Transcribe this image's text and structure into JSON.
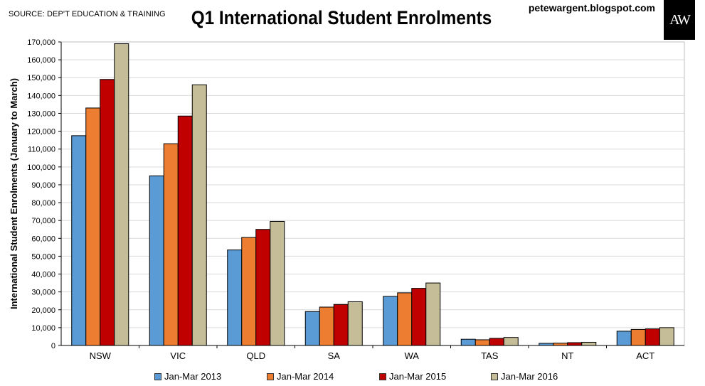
{
  "header": {
    "source": "SOURCE: DEP'T EDUCATION & TRAINING",
    "title": "Q1 International Student Enrolments",
    "site": "petewargent.blogspot.com",
    "logo": "AW"
  },
  "chart_data": {
    "type": "bar",
    "title": "Q1 International Student Enrolments",
    "ylabel": "International Student Enrolments (January to March)",
    "xlabel": "",
    "ylim": [
      0,
      170000
    ],
    "ytick_step": 10000,
    "grid": true,
    "legend_position": "bottom",
    "categories": [
      "NSW",
      "VIC",
      "QLD",
      "SA",
      "WA",
      "TAS",
      "NT",
      "ACT"
    ],
    "series": [
      {
        "name": "Jan-Mar 2013",
        "color": "#5b9bd5",
        "values": [
          117500,
          95000,
          53500,
          19000,
          27500,
          3500,
          1200,
          8000
        ]
      },
      {
        "name": "Jan-Mar 2014",
        "color": "#ed7d31",
        "values": [
          133000,
          113000,
          60500,
          21500,
          29500,
          3200,
          1300,
          9000
        ]
      },
      {
        "name": "Jan-Mar 2015",
        "color": "#c00000",
        "values": [
          149000,
          128500,
          65000,
          23000,
          32000,
          4000,
          1600,
          9300
        ]
      },
      {
        "name": "Jan-Mar 2016",
        "color": "#c4bd97",
        "values": [
          169000,
          146000,
          69500,
          24500,
          35000,
          4500,
          1800,
          10000
        ]
      }
    ]
  }
}
